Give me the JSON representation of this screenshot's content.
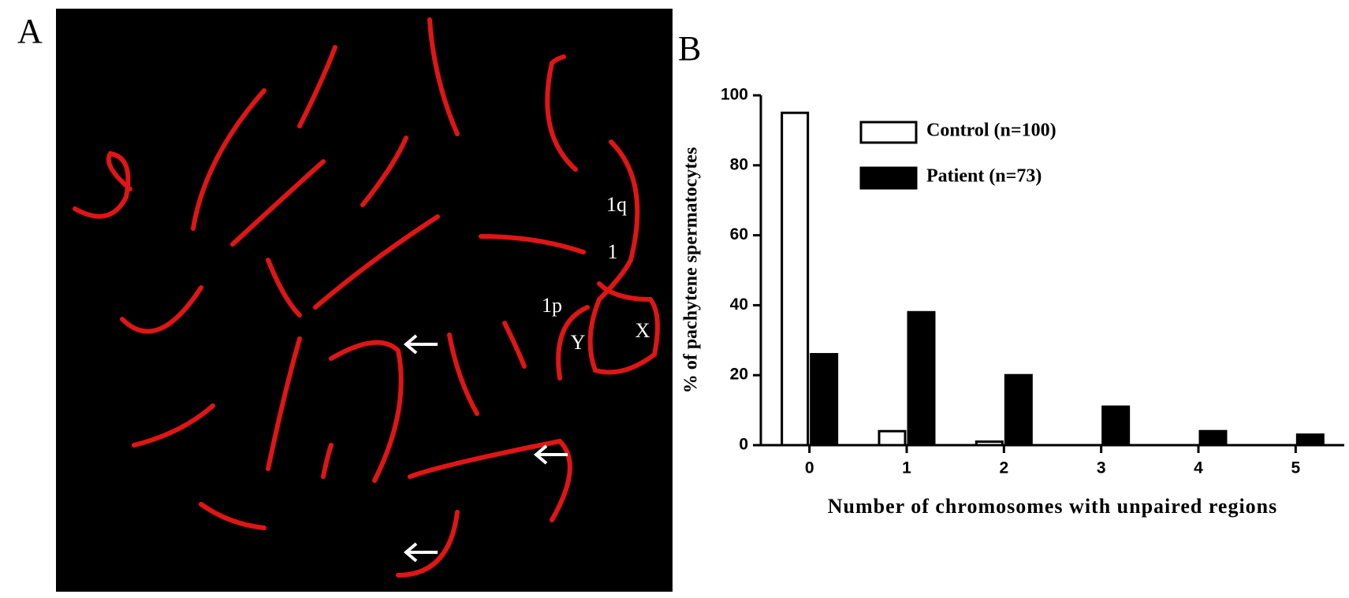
{
  "figure_a": {
    "label": "A",
    "annotations": [
      "1q",
      "1",
      "1p",
      "Y",
      "X"
    ]
  },
  "chart_data": {
    "type": "bar",
    "panel_label": "B",
    "x_label": "Number of chromosomes with unpaired regions",
    "y_label": "% of pachytene spermatocytes",
    "categories": [
      "0",
      "1",
      "2",
      "3",
      "4",
      "5"
    ],
    "series": [
      {
        "name": "Control (n=100)",
        "color": "#ffffff",
        "values": [
          95,
          4,
          1,
          0,
          0,
          0
        ]
      },
      {
        "name": "Patient (n=73)",
        "color": "#000000",
        "values": [
          26,
          38,
          20,
          11,
          4,
          3
        ]
      }
    ],
    "ylim": [
      0,
      100
    ],
    "yticks": [
      0,
      20,
      40,
      60,
      80,
      100
    ],
    "grid": false,
    "legend": "upper-right"
  }
}
